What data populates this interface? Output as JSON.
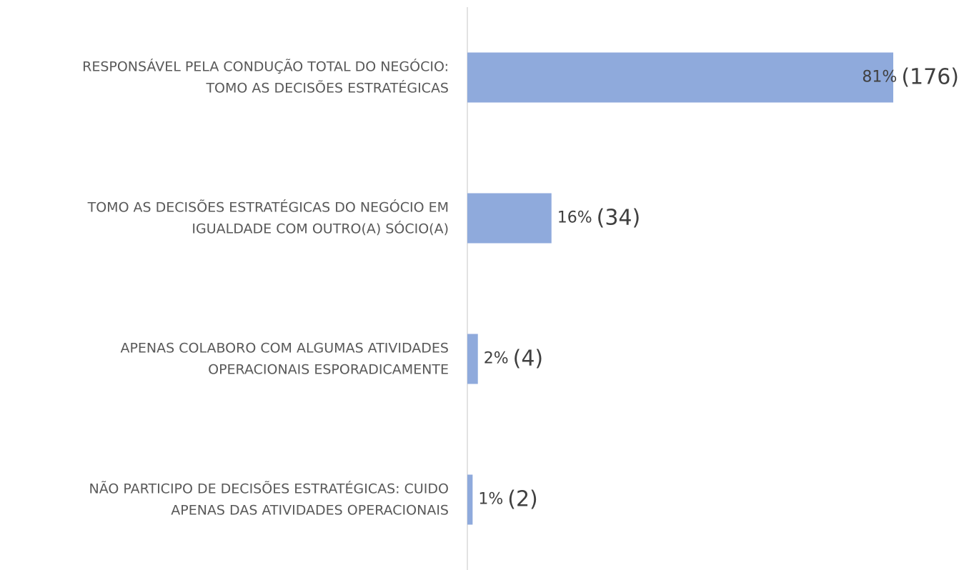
{
  "chart_data": {
    "type": "bar",
    "orientation": "horizontal",
    "categories": [
      "RESPONSÁVEL PELA CONDUÇÃO TOTAL DO NEGÓCIO:\nTOMO AS DECISÕES ESTRATÉGICAS",
      "TOMO AS DECISÕES ESTRATÉGICAS DO NEGÓCIO EM\nIGUALDADE COM OUTRO(A) SÓCIO(A)",
      "APENAS COLABORO COM ALGUMAS ATIVIDADES\nOPERACIONAIS ESPORADICAMENTE",
      "NÃO PARTICIPO DE DECISÕES ESTRATÉGICAS: CUIDO\nAPENAS DAS ATIVIDADES OPERACIONAIS"
    ],
    "values": [
      81,
      16,
      2,
      1
    ],
    "value_labels": [
      "81%",
      "16%",
      "2%",
      "1%"
    ],
    "counts": [
      176,
      34,
      4,
      2
    ],
    "count_labels": [
      "(176)",
      "(34)",
      "(4)",
      "(2)"
    ],
    "color": "#8faadc"
  }
}
